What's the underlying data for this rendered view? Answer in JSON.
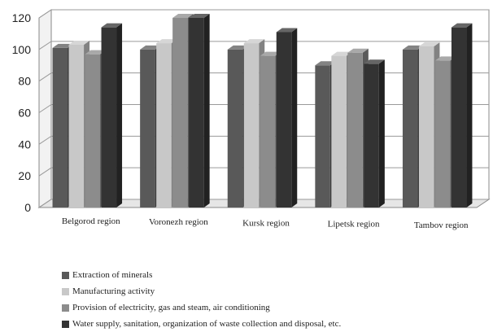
{
  "chart_data": {
    "type": "bar",
    "title": "",
    "xlabel": "",
    "ylabel": "",
    "ylim": [
      0,
      120
    ],
    "yticks": [
      0,
      20,
      40,
      60,
      80,
      100,
      120
    ],
    "grid": true,
    "style": "3d-clustered-columns",
    "legend_position": "bottom-left",
    "categories": [
      "Belgorod region",
      "Voronezh region",
      "Kursk region",
      "Lipetsk region",
      "Tambov region"
    ],
    "series": [
      {
        "name": "Extraction of minerals",
        "color": "#595959",
        "values": [
          101,
          100,
          100,
          90,
          100
        ]
      },
      {
        "name": "Manufacturing activity",
        "color": "#c8c8c8",
        "values": [
          103,
          104,
          104,
          96,
          102
        ]
      },
      {
        "name": "Provision of electricity, gas and steam, air conditioning",
        "color": "#8c8c8c",
        "values": [
          97,
          120,
          96,
          98,
          93
        ]
      },
      {
        "name": "Water supply, sanitation, organization of waste collection and disposal, etc.",
        "color": "#333333",
        "values": [
          114,
          120,
          111,
          91,
          114
        ]
      }
    ]
  }
}
